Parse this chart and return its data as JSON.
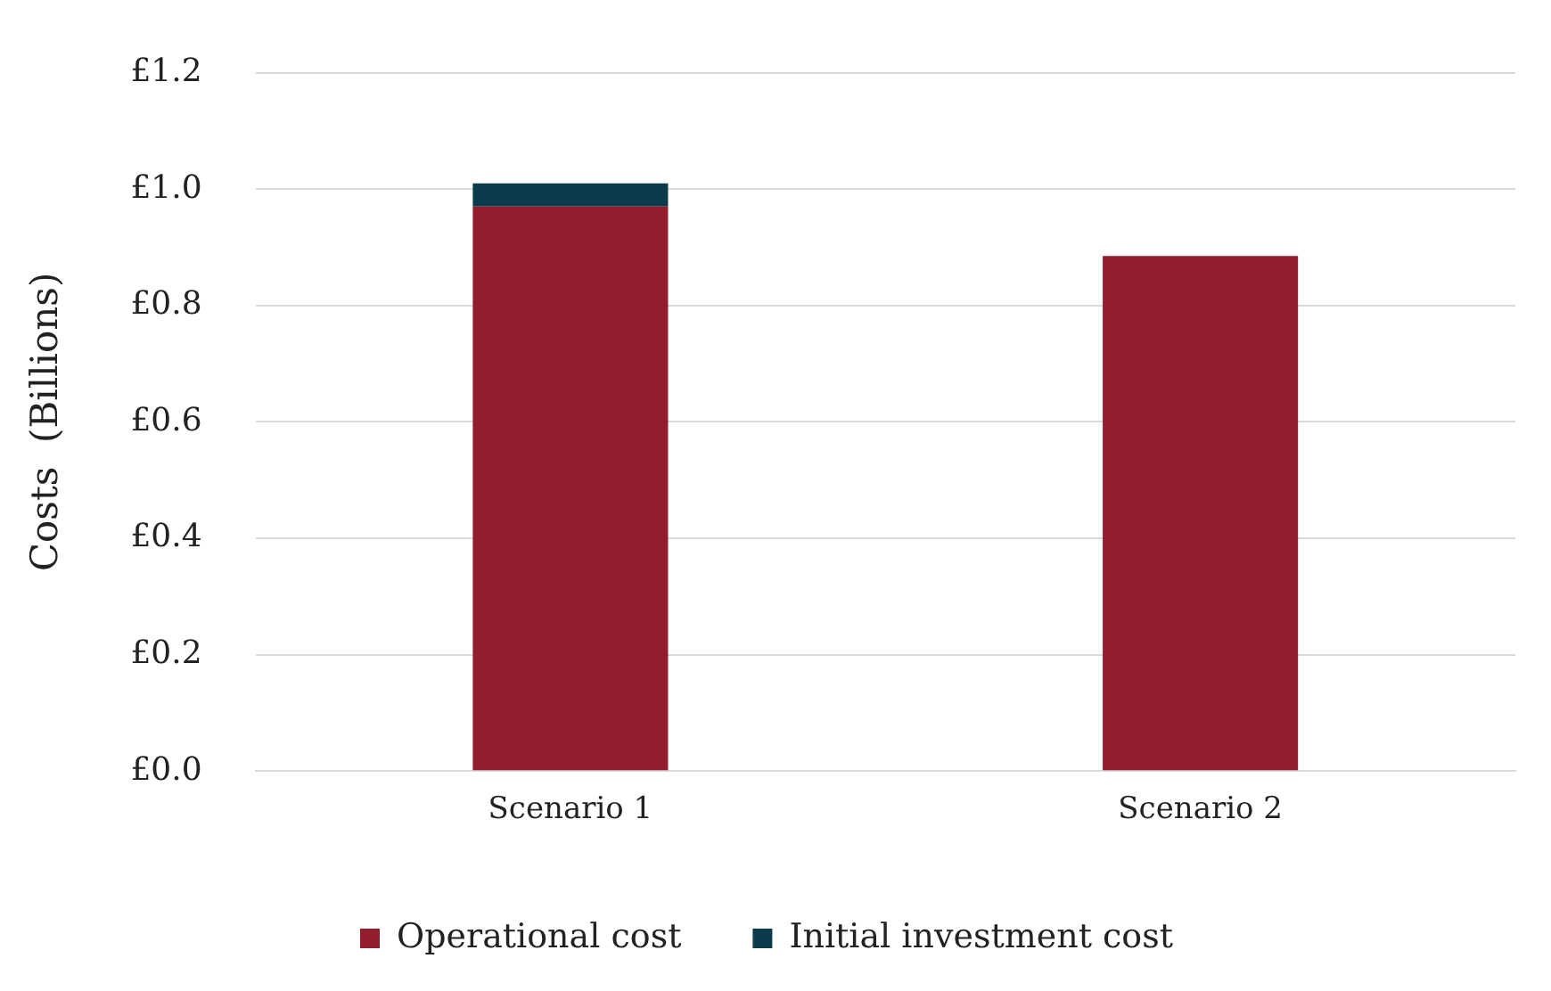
{
  "chart_data": {
    "type": "bar",
    "stacked": true,
    "ylabel": "Costs  (Billions)",
    "categories": [
      "Scenario 1",
      "Scenario 2"
    ],
    "series": [
      {
        "name": "Operational cost",
        "color": "#941c2f",
        "values": [
          0.97,
          0.885
        ]
      },
      {
        "name": "Initial investment cost",
        "color": "#0b3c4c",
        "values": [
          0.04,
          0
        ]
      }
    ],
    "ylim": [
      0,
      1.2
    ],
    "yticks": [
      {
        "value": 0,
        "label": "£0.0"
      },
      {
        "value": 0.2,
        "label": "£0.2"
      },
      {
        "value": 0.4,
        "label": "£0.4"
      },
      {
        "value": 0.6,
        "label": "£0.6"
      },
      {
        "value": 0.8,
        "label": "£0.8"
      },
      {
        "value": 1,
        "label": "£1.0"
      },
      {
        "value": 1.2,
        "label": "£1.2"
      }
    ],
    "grid": "y",
    "legend": "bottom"
  }
}
